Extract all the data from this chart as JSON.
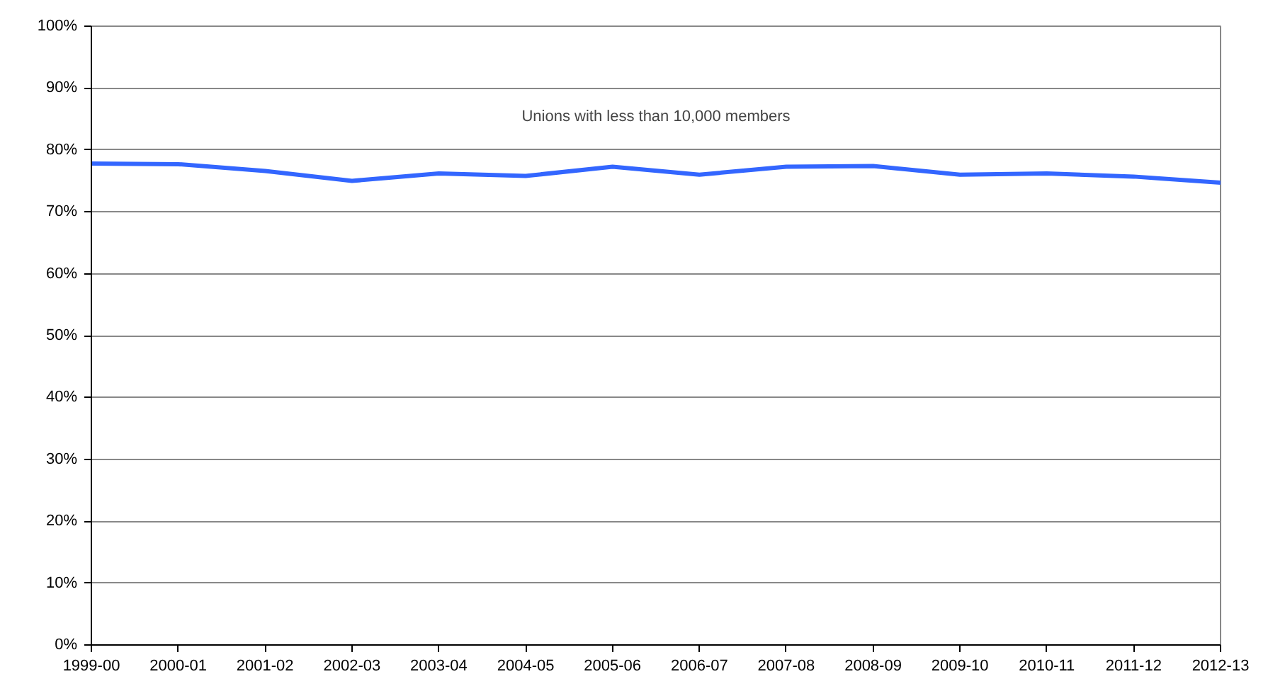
{
  "chart_data": {
    "type": "line",
    "categories": [
      "1999-00",
      "2000-01",
      "2001-02",
      "2002-03",
      "2003-04",
      "2004-05",
      "2005-06",
      "2006-07",
      "2007-08",
      "2008-09",
      "2009-10",
      "2010-11",
      "2011-12",
      "2012-13"
    ],
    "series": [
      {
        "color": "#3366ff",
        "values": [
          77.8,
          77.7,
          76.6,
          75.0,
          76.2,
          75.8,
          77.3,
          76.0,
          77.3,
          77.4,
          76.0,
          76.2,
          75.7,
          74.7
        ]
      }
    ],
    "ylim": [
      0,
      100
    ],
    "yticks": [
      {
        "value": 0,
        "label": "0%"
      },
      {
        "value": 10,
        "label": "10%"
      },
      {
        "value": 20,
        "label": "20%"
      },
      {
        "value": 30,
        "label": "30%"
      },
      {
        "value": 40,
        "label": "40%"
      },
      {
        "value": 50,
        "label": "50%"
      },
      {
        "value": 60,
        "label": "60%"
      },
      {
        "value": 70,
        "label": "70%"
      },
      {
        "value": 80,
        "label": "80%"
      },
      {
        "value": 90,
        "label": "90%"
      },
      {
        "value": 100,
        "label": "100%"
      }
    ],
    "grid": "y",
    "annotations": [
      "Unions with less than 10,000 members"
    ]
  }
}
